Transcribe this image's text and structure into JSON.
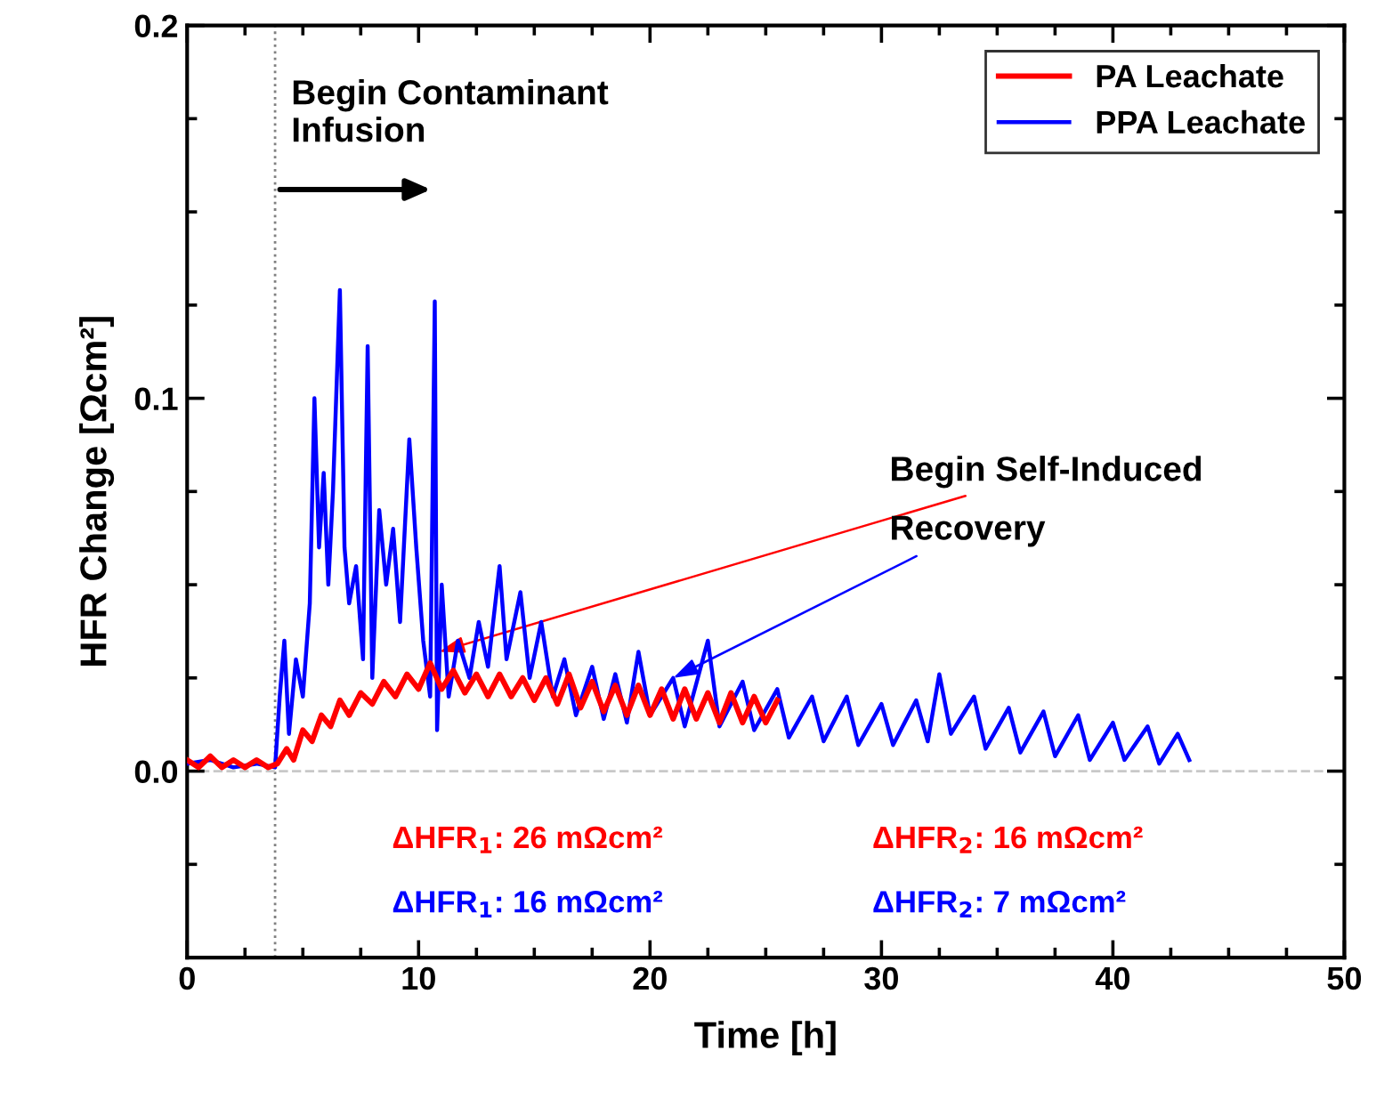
{
  "chart_data": {
    "type": "line",
    "xlabel": "Time [h]",
    "ylabel": "HFR Change [Ωcm²]",
    "xlim": [
      0,
      50
    ],
    "xticks": [
      0,
      10,
      20,
      30,
      40,
      50
    ],
    "ylim": [
      -0.05,
      0.2
    ],
    "yticks": [
      {
        "value": 0,
        "label": "0.0"
      },
      {
        "value": 0.1,
        "label": "0.1"
      },
      {
        "value": 0.2,
        "label": "0.2"
      }
    ],
    "grid": false,
    "legend": "top right",
    "line_style": "solid",
    "marker": "none",
    "series": [
      {
        "name": "PA Leachate",
        "color": "#ff0000",
        "x": [
          0,
          0.5,
          1,
          1.5,
          2,
          2.5,
          3,
          3.5,
          3.9,
          4.3,
          4.6,
          5,
          5.4,
          5.8,
          6.2,
          6.6,
          7,
          7.5,
          8,
          8.5,
          9,
          9.5,
          10,
          10.5,
          11,
          11.5,
          12,
          12.5,
          13,
          13.5,
          14,
          14.5,
          15,
          15.5,
          16,
          16.5,
          17,
          17.5,
          18,
          18.5,
          19,
          19.5,
          20,
          20.5,
          21,
          21.5,
          22,
          22.5,
          23,
          23.5,
          24,
          24.5,
          25,
          25.5
        ],
        "values": [
          0.003,
          0.001,
          0.004,
          0.001,
          0.003,
          0.001,
          0.003,
          0.001,
          0.002,
          0.006,
          0.003,
          0.011,
          0.008,
          0.015,
          0.012,
          0.019,
          0.015,
          0.021,
          0.018,
          0.024,
          0.02,
          0.026,
          0.022,
          0.029,
          0.022,
          0.027,
          0.021,
          0.026,
          0.02,
          0.026,
          0.02,
          0.025,
          0.019,
          0.025,
          0.018,
          0.026,
          0.017,
          0.024,
          0.016,
          0.023,
          0.015,
          0.023,
          0.015,
          0.022,
          0.014,
          0.022,
          0.014,
          0.021,
          0.013,
          0.021,
          0.013,
          0.02,
          0.013,
          0.019
        ]
      },
      {
        "name": "PPA Leachate",
        "color": "#0000ff",
        "x": [
          0,
          1,
          2,
          3,
          3.8,
          4.0,
          4.2,
          4.4,
          4.7,
          5.0,
          5.3,
          5.5,
          5.7,
          5.9,
          6.1,
          6.3,
          6.6,
          6.8,
          7.0,
          7.3,
          7.6,
          7.8,
          8.0,
          8.3,
          8.6,
          8.9,
          9.2,
          9.6,
          9.9,
          10.2,
          10.5,
          10.7,
          10.8,
          11.0,
          11.3,
          11.7,
          12.2,
          12.6,
          13.0,
          13.5,
          13.8,
          14.4,
          14.8,
          15.3,
          15.8,
          16.3,
          16.8,
          17.5,
          18.0,
          18.5,
          19.0,
          19.5,
          20,
          21,
          21.5,
          22.5,
          23,
          24,
          24.5,
          25.5,
          26,
          27,
          27.5,
          28.5,
          29,
          30,
          30.5,
          31.5,
          32,
          32.5,
          33,
          34,
          34.5,
          35.5,
          36,
          37,
          37.5,
          38.5,
          39,
          40,
          40.5,
          41.5,
          42,
          42.8,
          43.3
        ],
        "values": [
          0.002,
          0.003,
          0.001,
          0.002,
          0.001,
          0.02,
          0.035,
          0.01,
          0.03,
          0.02,
          0.045,
          0.1,
          0.06,
          0.08,
          0.05,
          0.075,
          0.129,
          0.06,
          0.045,
          0.055,
          0.03,
          0.114,
          0.025,
          0.07,
          0.05,
          0.065,
          0.04,
          0.089,
          0.06,
          0.035,
          0.02,
          0.126,
          0.011,
          0.05,
          0.02,
          0.035,
          0.025,
          0.04,
          0.028,
          0.055,
          0.03,
          0.048,
          0.025,
          0.04,
          0.02,
          0.03,
          0.015,
          0.028,
          0.014,
          0.026,
          0.013,
          0.032,
          0.015,
          0.025,
          0.012,
          0.035,
          0.012,
          0.024,
          0.011,
          0.022,
          0.009,
          0.02,
          0.008,
          0.02,
          0.007,
          0.018,
          0.007,
          0.019,
          0.008,
          0.026,
          0.01,
          0.02,
          0.006,
          0.017,
          0.005,
          0.016,
          0.004,
          0.015,
          0.003,
          0.013,
          0.003,
          0.012,
          0.002,
          0.01,
          0.003
        ]
      }
    ],
    "ref_lines": [
      {
        "axis": "x",
        "value": 3.8,
        "color": "#808080",
        "line_style": "dotted"
      },
      {
        "axis": "y",
        "value": 0,
        "color": "#c8c8c8",
        "line_style": "dashed"
      }
    ],
    "annotations": [
      {
        "text": "Begin Contaminant\nInfusion",
        "x": 3.8,
        "y": 0.156
      },
      {
        "text": "Begin Self-Induced",
        "x": 10.9,
        "y": 0.032
      },
      {
        "text": "Recovery",
        "x": 21,
        "y": 0.025
      },
      "ΔHFR$_{1}$: 26 mΩcm²",
      "ΔHFR$_{1}$: 16 mΩcm²",
      "ΔHFR$_{2}$: 16 mΩcm²",
      "ΔHFR$_{2}$: 7 mΩcm²"
    ]
  }
}
